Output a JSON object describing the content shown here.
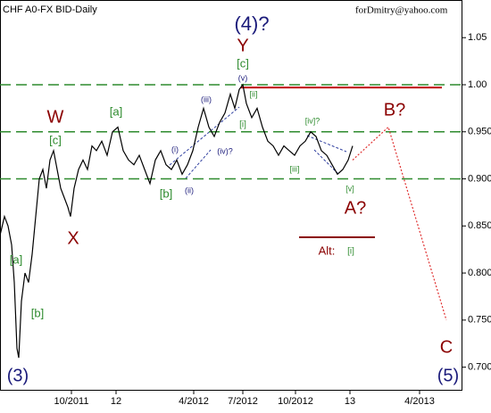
{
  "chart_data": {
    "type": "line",
    "title": "CHF A0-FX BID-Daily",
    "subtitle": "forDmitry@yahoo.com",
    "x": [
      0,
      5,
      9,
      13,
      16,
      19,
      21,
      24,
      28,
      32,
      36,
      40,
      44,
      48,
      52,
      56,
      60,
      64,
      68,
      72,
      76,
      79,
      83,
      88,
      93,
      98,
      103,
      108,
      114,
      120,
      126,
      132,
      138,
      144,
      150,
      156,
      162,
      168,
      174,
      180,
      186,
      192,
      198,
      204,
      210,
      216,
      222,
      228,
      234,
      240,
      246,
      252,
      258,
      263,
      268,
      272,
      276,
      282,
      288,
      294,
      300,
      306,
      312,
      318,
      324,
      330,
      336,
      342,
      348,
      354,
      360,
      366,
      372,
      378,
      384,
      390,
      395
    ],
    "series": [
      {
        "name": "CHF A0-FX BID",
        "color": "#000000",
        "values": [
          0.84,
          0.86,
          0.85,
          0.83,
          0.79,
          0.72,
          0.71,
          0.77,
          0.8,
          0.79,
          0.82,
          0.86,
          0.9,
          0.91,
          0.89,
          0.92,
          0.93,
          0.91,
          0.89,
          0.88,
          0.87,
          0.86,
          0.89,
          0.91,
          0.92,
          0.91,
          0.935,
          0.93,
          0.94,
          0.925,
          0.95,
          0.955,
          0.93,
          0.92,
          0.915,
          0.925,
          0.91,
          0.895,
          0.92,
          0.93,
          0.915,
          0.91,
          0.92,
          0.905,
          0.915,
          0.93,
          0.955,
          0.975,
          0.955,
          0.945,
          0.96,
          0.97,
          0.99,
          0.975,
          0.995,
          1.0,
          0.98,
          0.965,
          0.975,
          0.955,
          0.94,
          0.935,
          0.925,
          0.935,
          0.93,
          0.925,
          0.935,
          0.94,
          0.95,
          0.945,
          0.93,
          0.925,
          0.915,
          0.905,
          0.91,
          0.92,
          0.935
        ]
      }
    ],
    "xlim": [
      0,
      518
    ],
    "ylim": [
      0.675,
      1.09
    ],
    "xticks": [
      {
        "value": 80,
        "label": "10/2011"
      },
      {
        "value": 130,
        "label": "12"
      },
      {
        "value": 217,
        "label": "4/2012"
      },
      {
        "value": 272,
        "label": "7/2012"
      },
      {
        "value": 331,
        "label": "10/2012"
      },
      {
        "value": 392,
        "label": "13"
      },
      {
        "value": 470,
        "label": "4/2013"
      }
    ],
    "yticks": [
      {
        "value": 0.7,
        "label": "0.700"
      },
      {
        "value": 0.75,
        "label": "0.750"
      },
      {
        "value": 0.8,
        "label": "0.800"
      },
      {
        "value": 0.85,
        "label": "0.850"
      },
      {
        "value": 0.9,
        "label": "0.900"
      },
      {
        "value": 0.95,
        "label": "0.950"
      },
      {
        "value": 1.0,
        "label": "1.00"
      },
      {
        "value": 1.05,
        "label": "1.05"
      }
    ],
    "levels": [
      {
        "y": 0.95,
        "color": "#2e8b2e"
      },
      {
        "y": 0.9,
        "color": "#2e8b2e"
      },
      {
        "y": 1.0,
        "color": "#2e8b2e"
      }
    ],
    "segments": [
      {
        "y": 0.997,
        "x": [
          270,
          495
        ],
        "color": "#c00000"
      },
      {
        "y": 0.838,
        "x": [
          335,
          420
        ],
        "color": "#8b0000"
      }
    ],
    "projection": {
      "color": "#e03030",
      "x": [
        395,
        435,
        500
      ],
      "y": [
        0.92,
        0.955,
        0.75
      ]
    },
    "annotations": [
      {
        "text": "(4)?",
        "color": "#1a1a7a"
      },
      {
        "text": "Y",
        "color": "#8b0000"
      },
      {
        "text": "[c]",
        "color": "#2e8b2e"
      },
      {
        "text": "(v)",
        "color": "#1a1a7a"
      },
      {
        "text": "[ii]",
        "color": "#2e8b2e"
      },
      {
        "text": "[i]",
        "color": "#2e8b2e"
      },
      {
        "text": "(iii)",
        "color": "#1a1a7a"
      },
      {
        "text": "[a]",
        "color": "#2e8b2e"
      },
      {
        "text": "W",
        "color": "#8b0000"
      },
      {
        "text": "[c]",
        "color": "#2e8b2e"
      },
      {
        "text": "(i)",
        "color": "#1a1a7a"
      },
      {
        "text": "(iv)?",
        "color": "#1a1a7a"
      },
      {
        "text": "(ii)",
        "color": "#1a1a7a"
      },
      {
        "text": "[b]",
        "color": "#2e8b2e"
      },
      {
        "text": "X",
        "color": "#8b0000"
      },
      {
        "text": "[iv]?",
        "color": "#2e8b2e"
      },
      {
        "text": "[iii]",
        "color": "#2e8b2e"
      },
      {
        "text": "[v]",
        "color": "#2e8b2e"
      },
      {
        "text": "A?",
        "color": "#8b0000"
      },
      {
        "text": "B?",
        "color": "#8b0000"
      },
      {
        "text": "Alt:",
        "color": "#8b0000"
      },
      {
        "text": "[i]",
        "color": "#2e8b2e"
      },
      {
        "text": "C",
        "color": "#8b0000"
      },
      {
        "text": "(5)",
        "color": "#1a1a7a"
      },
      {
        "text": "(3)",
        "color": "#1a1a7a"
      },
      {
        "text": "[a]",
        "color": "#2e8b2e"
      },
      {
        "text": "[b]",
        "color": "#2e8b2e"
      }
    ]
  }
}
